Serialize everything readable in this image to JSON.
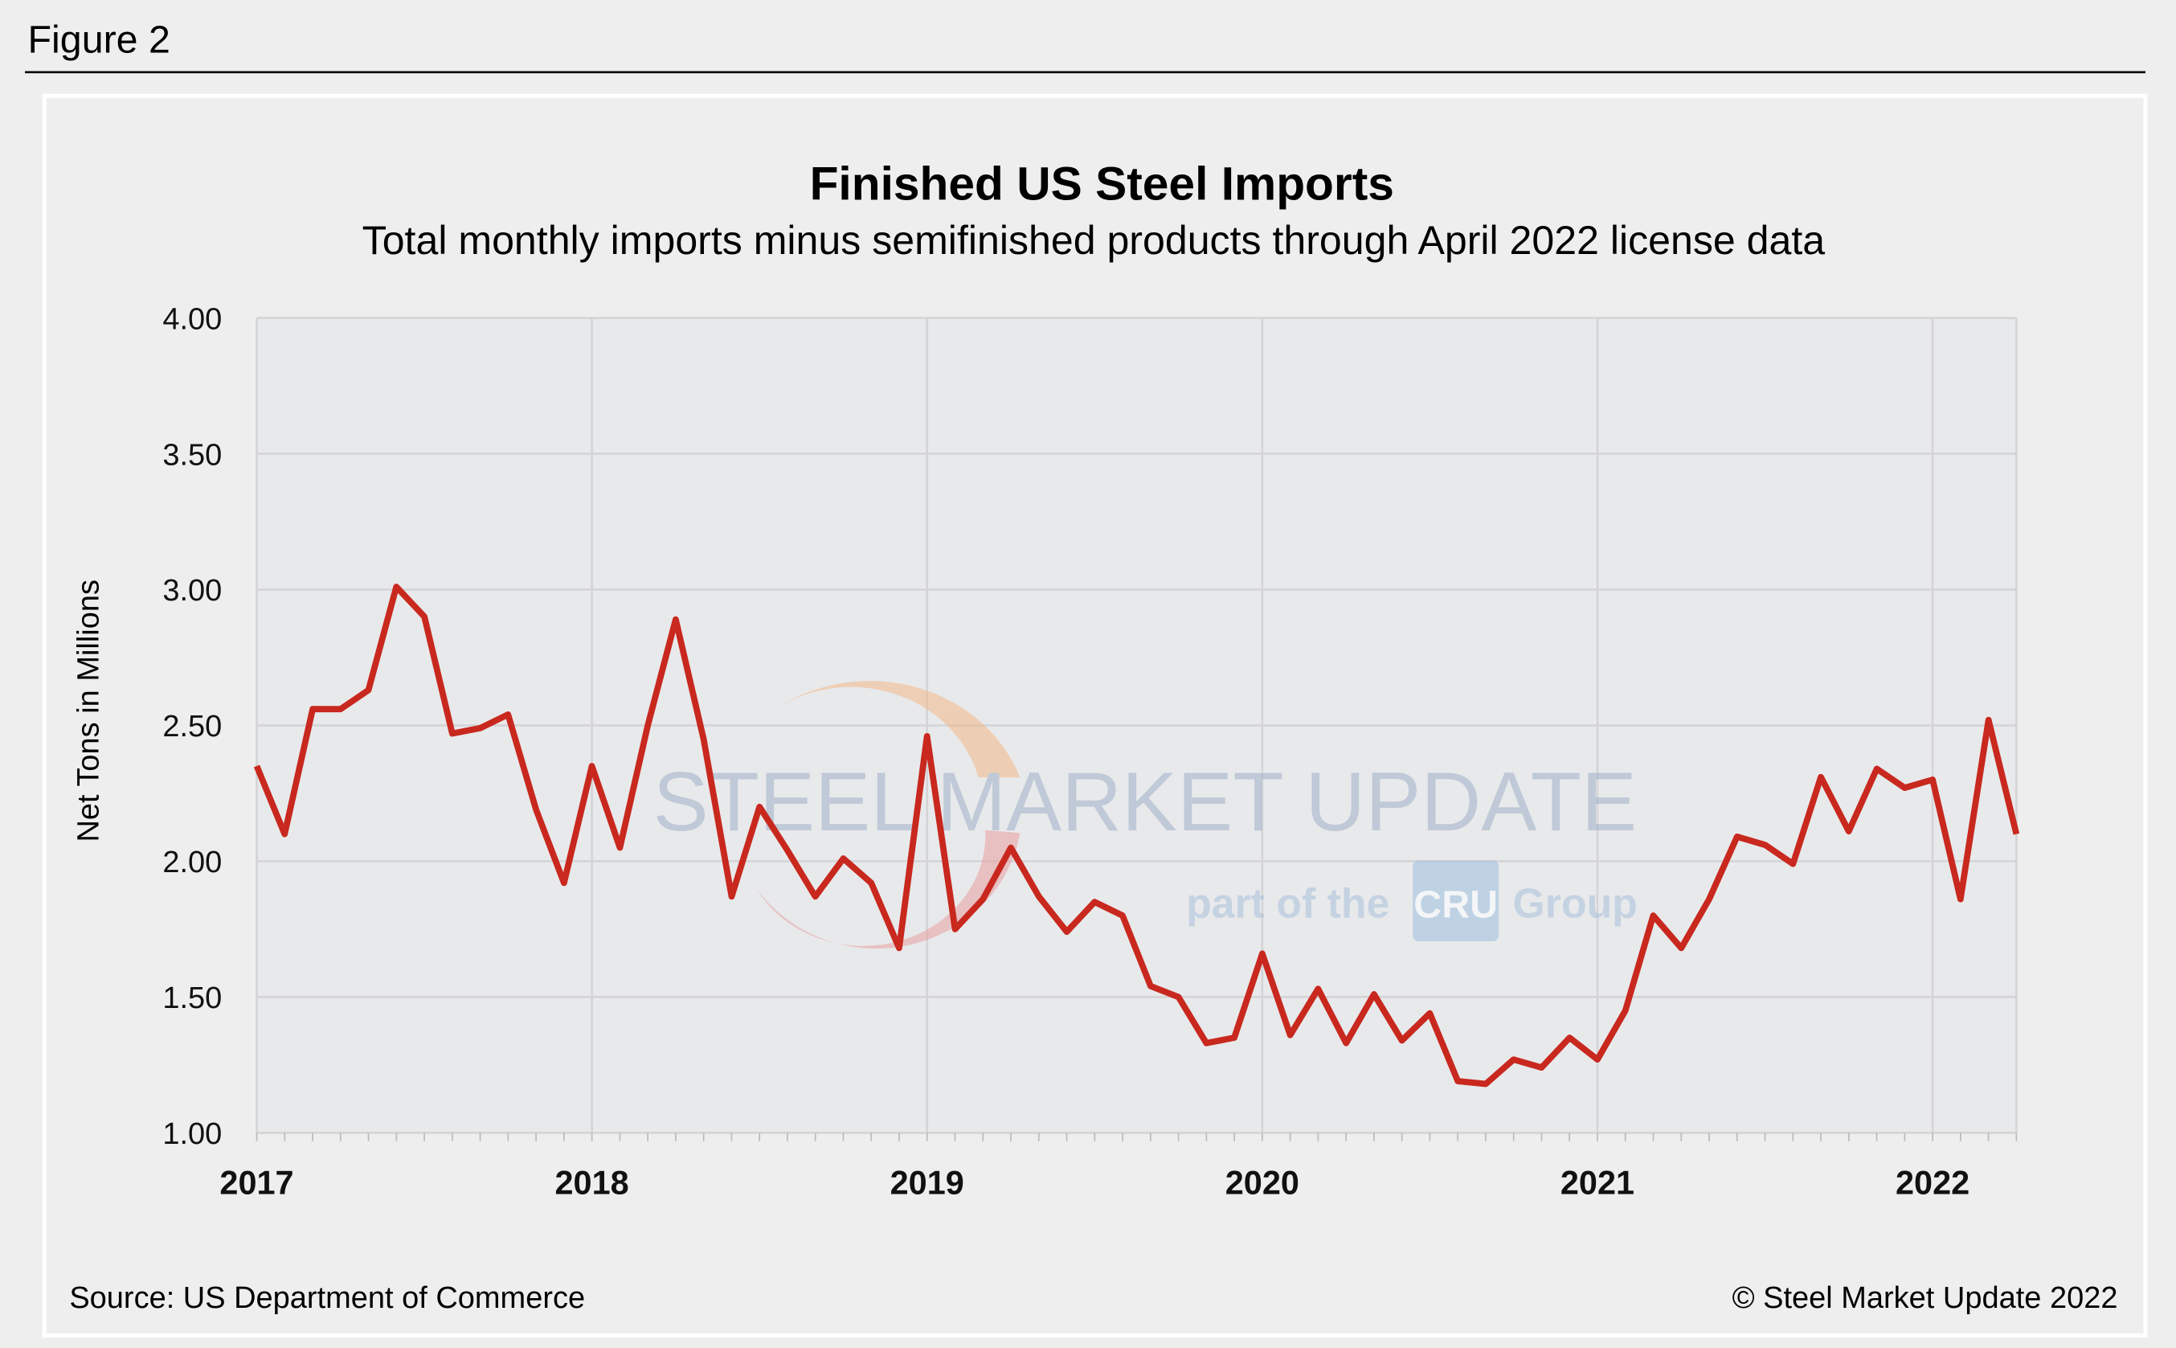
{
  "figure_label": "Figure 2",
  "source": "Source: US Department of Commerce",
  "copyright": "© Steel Market Update 2022",
  "watermark": {
    "brand": "STEEL MARKET UPDATE",
    "tagline_pre": "part of the",
    "tagline_logo": "CRU",
    "tagline_post": "Group"
  },
  "colors": {
    "line": "#c8281e",
    "plot_bg": "#e8e9eb",
    "page_bg": "#eeeeee",
    "grid": "#d4d4d6"
  },
  "chart_data": {
    "type": "line",
    "title": "Finished US Steel Imports",
    "subtitle": "Total monthly imports minus semifinished products through April 2022 license data",
    "xlabel": "",
    "ylabel": "Net Tons in Millions",
    "ylim": [
      1.0,
      4.0
    ],
    "yticks": [
      "1.00",
      "1.50",
      "2.00",
      "2.50",
      "3.00",
      "3.50",
      "4.00"
    ],
    "xticks": [
      "2017",
      "2018",
      "2019",
      "2020",
      "2021",
      "2022"
    ],
    "grid": true,
    "x_start": "2017-01",
    "x_end": "2022-04",
    "frequency": "monthly",
    "values": [
      2.35,
      2.1,
      2.56,
      2.56,
      2.63,
      3.01,
      2.9,
      2.47,
      2.49,
      2.54,
      2.19,
      1.92,
      2.35,
      2.05,
      2.5,
      2.89,
      2.45,
      1.87,
      2.2,
      2.04,
      1.87,
      2.01,
      1.92,
      1.68,
      2.46,
      1.75,
      1.86,
      2.05,
      1.87,
      1.74,
      1.85,
      1.8,
      1.54,
      1.5,
      1.33,
      1.35,
      1.66,
      1.36,
      1.53,
      1.33,
      1.51,
      1.34,
      1.44,
      1.19,
      1.18,
      1.27,
      1.24,
      1.35,
      1.27,
      1.45,
      1.8,
      1.68,
      1.86,
      2.09,
      2.06,
      1.99,
      2.31,
      2.11,
      2.34,
      2.27,
      2.3,
      1.86,
      2.52,
      2.1
    ]
  }
}
